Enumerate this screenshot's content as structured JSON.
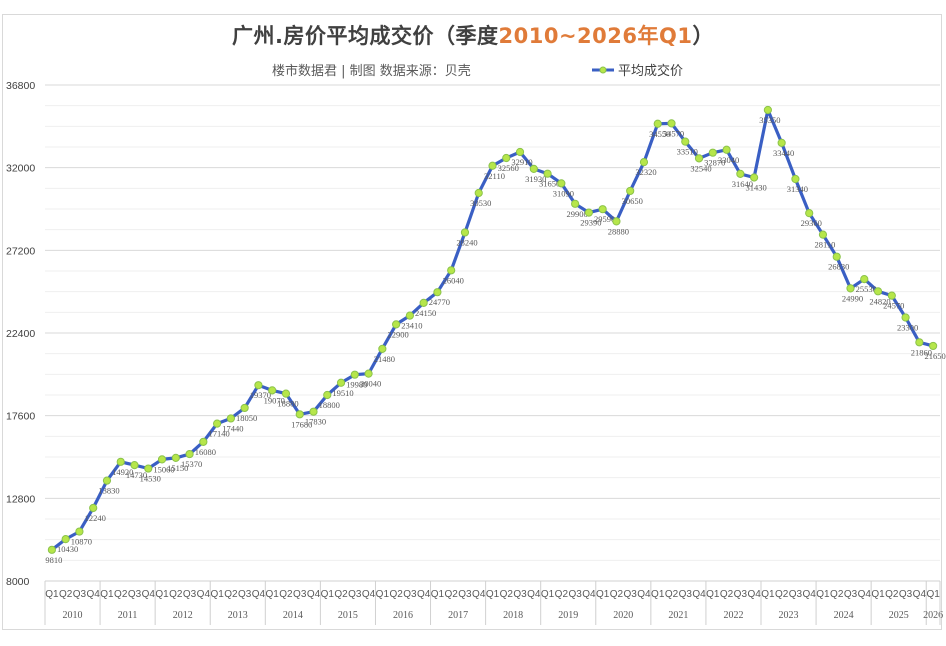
{
  "title": {
    "prefix": "广州.房价平均成交价（季度",
    "accent": "2010~2026年Q1",
    "suffix": "）"
  },
  "subtitle": "楼市数据君 | 制图  数据来源：贝壳",
  "legend": {
    "label": "平均成交价",
    "line_color": "#3a5fc4",
    "marker_color": "#b6e64a"
  },
  "colors": {
    "line": "#3a5fc4",
    "marker_fill": "#b6e64a",
    "marker_stroke": "#8bc34a",
    "grid_major": "#d9d9d9",
    "grid_minor": "#efefef",
    "accent": "#e07b39"
  },
  "chart_data": {
    "type": "line",
    "title": "广州.房价平均成交价（季度2010~2026年Q1）",
    "subtitle": "楼市数据君 | 制图  数据来源：贝壳",
    "xlabel": "",
    "ylabel": "",
    "ylim": [
      8000,
      36800
    ],
    "yticks": [
      8000,
      12800,
      17600,
      22400,
      27200,
      32000,
      36800
    ],
    "grid": true,
    "legend_position": "top-right",
    "years": [
      "2010",
      "2011",
      "2012",
      "2013",
      "2014",
      "2015",
      "2016",
      "2017",
      "2018",
      "2019",
      "2020",
      "2021",
      "2022",
      "2023",
      "2024",
      "2025",
      "2026"
    ],
    "categories": [
      "2010 Q1",
      "2010 Q2",
      "2010 Q3",
      "2010 Q4",
      "2011 Q1",
      "2011 Q2",
      "2011 Q3",
      "2011 Q4",
      "2012 Q1",
      "2012 Q2",
      "2012 Q3",
      "2012 Q4",
      "2013 Q1",
      "2013 Q2",
      "2013 Q3",
      "2013 Q4",
      "2014 Q1",
      "2014 Q2",
      "2014 Q3",
      "2014 Q4",
      "2015 Q1",
      "2015 Q2",
      "2015 Q3",
      "2015 Q4",
      "2016 Q1",
      "2016 Q2",
      "2016 Q3",
      "2016 Q4",
      "2017 Q1",
      "2017 Q2",
      "2017 Q3",
      "2017 Q4",
      "2018 Q1",
      "2018 Q2",
      "2018 Q3",
      "2018 Q4",
      "2019 Q1",
      "2019 Q2",
      "2019 Q3",
      "2019 Q4",
      "2020 Q1",
      "2020 Q2",
      "2020 Q3",
      "2020 Q4",
      "2021 Q1",
      "2021 Q2",
      "2021 Q3",
      "2021 Q4",
      "2022 Q1",
      "2022 Q2",
      "2022 Q3",
      "2022 Q4",
      "2023 Q1",
      "2023 Q2",
      "2023 Q3",
      "2023 Q4",
      "2024 Q1",
      "2024 Q2",
      "2024 Q3",
      "2024 Q4",
      "2025 Q1",
      "2025 Q2",
      "2025 Q3",
      "2025 Q4",
      "2026 Q1"
    ],
    "series": [
      {
        "name": "平均成交价",
        "values": [
          9810,
          10430,
          10870,
          12240,
          13830,
          14920,
          14730,
          14530,
          15060,
          15150,
          15370,
          16080,
          17140,
          17440,
          18050,
          19370,
          19070,
          18880,
          17680,
          17830,
          18800,
          19510,
          19980,
          20040,
          21480,
          22900,
          23410,
          24150,
          24770,
          26040,
          28240,
          30530,
          32110,
          32560,
          32910,
          31930,
          31650,
          31090,
          29900,
          29390,
          29590,
          28880,
          30650,
          32320,
          34550,
          34570,
          33510,
          32540,
          32870,
          33040,
          31640,
          31430,
          35350,
          33440,
          31340,
          29360,
          28110,
          26830,
          24990,
          25530,
          24820,
          24570,
          23300,
          21860,
          21650
        ]
      }
    ]
  }
}
